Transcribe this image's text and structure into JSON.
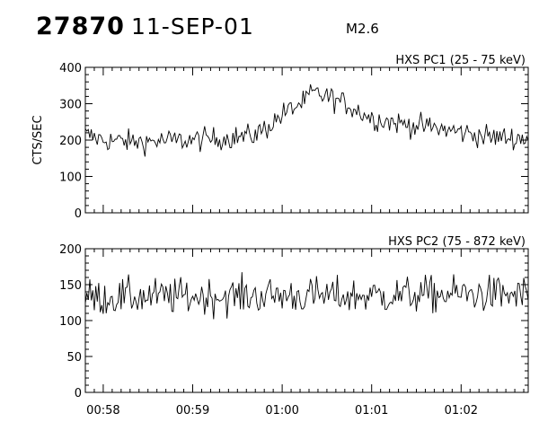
{
  "header": {
    "event_id": "27870",
    "date": "11-SEP-01",
    "flare_class": "M2.6"
  },
  "chart_data": [
    {
      "type": "line",
      "title": "HXS PC1 (25 - 75 keV)",
      "ylabel": "CTS/SEC",
      "xlabel": "",
      "ylim": [
        0,
        400
      ],
      "yticks": [
        0,
        100,
        200,
        300,
        400
      ],
      "xlim": [
        "00:57:48",
        "01:02:45"
      ],
      "xticks": [
        "00:58",
        "00:59",
        "01:00",
        "01:01",
        "01:02"
      ],
      "grid": false,
      "series": [
        {
          "description": "noisy count rate, baseline ~200, rising to a peak ~350 near 01:00:20 then decaying back to ~200",
          "x": [
            "00:57:48",
            "00:58:00",
            "00:58:20",
            "00:58:40",
            "00:59:00",
            "00:59:20",
            "00:59:40",
            "00:59:50",
            "01:00:00",
            "01:00:10",
            "01:00:15",
            "01:00:20",
            "01:00:30",
            "01:00:45",
            "01:01:00",
            "01:01:20",
            "01:01:40",
            "01:02:00",
            "01:02:20",
            "01:02:45"
          ],
          "values": [
            215,
            200,
            195,
            198,
            200,
            205,
            212,
            235,
            270,
            295,
            305,
            330,
            320,
            295,
            260,
            245,
            235,
            222,
            208,
            205
          ]
        }
      ]
    },
    {
      "type": "line",
      "title": "HXS PC2 (75 - 872 keV)",
      "ylabel": "",
      "xlabel": "",
      "ylim": [
        0,
        200
      ],
      "yticks": [
        0,
        50,
        100,
        150,
        200
      ],
      "xlim": [
        "00:57:48",
        "01:02:45"
      ],
      "xticks": [
        "00:58",
        "00:59",
        "01:00",
        "01:01",
        "01:02"
      ],
      "grid": false,
      "series": [
        {
          "description": "noisy count rate fluctuating roughly 110-160 around a mean of ~135",
          "x": [
            "00:57:48",
            "00:58:30",
            "00:59:15",
            "01:00:00",
            "01:00:45",
            "01:01:30",
            "01:02:15",
            "01:02:45"
          ],
          "values": [
            132,
            133,
            134,
            135,
            134,
            136,
            137,
            135
          ]
        }
      ]
    }
  ]
}
